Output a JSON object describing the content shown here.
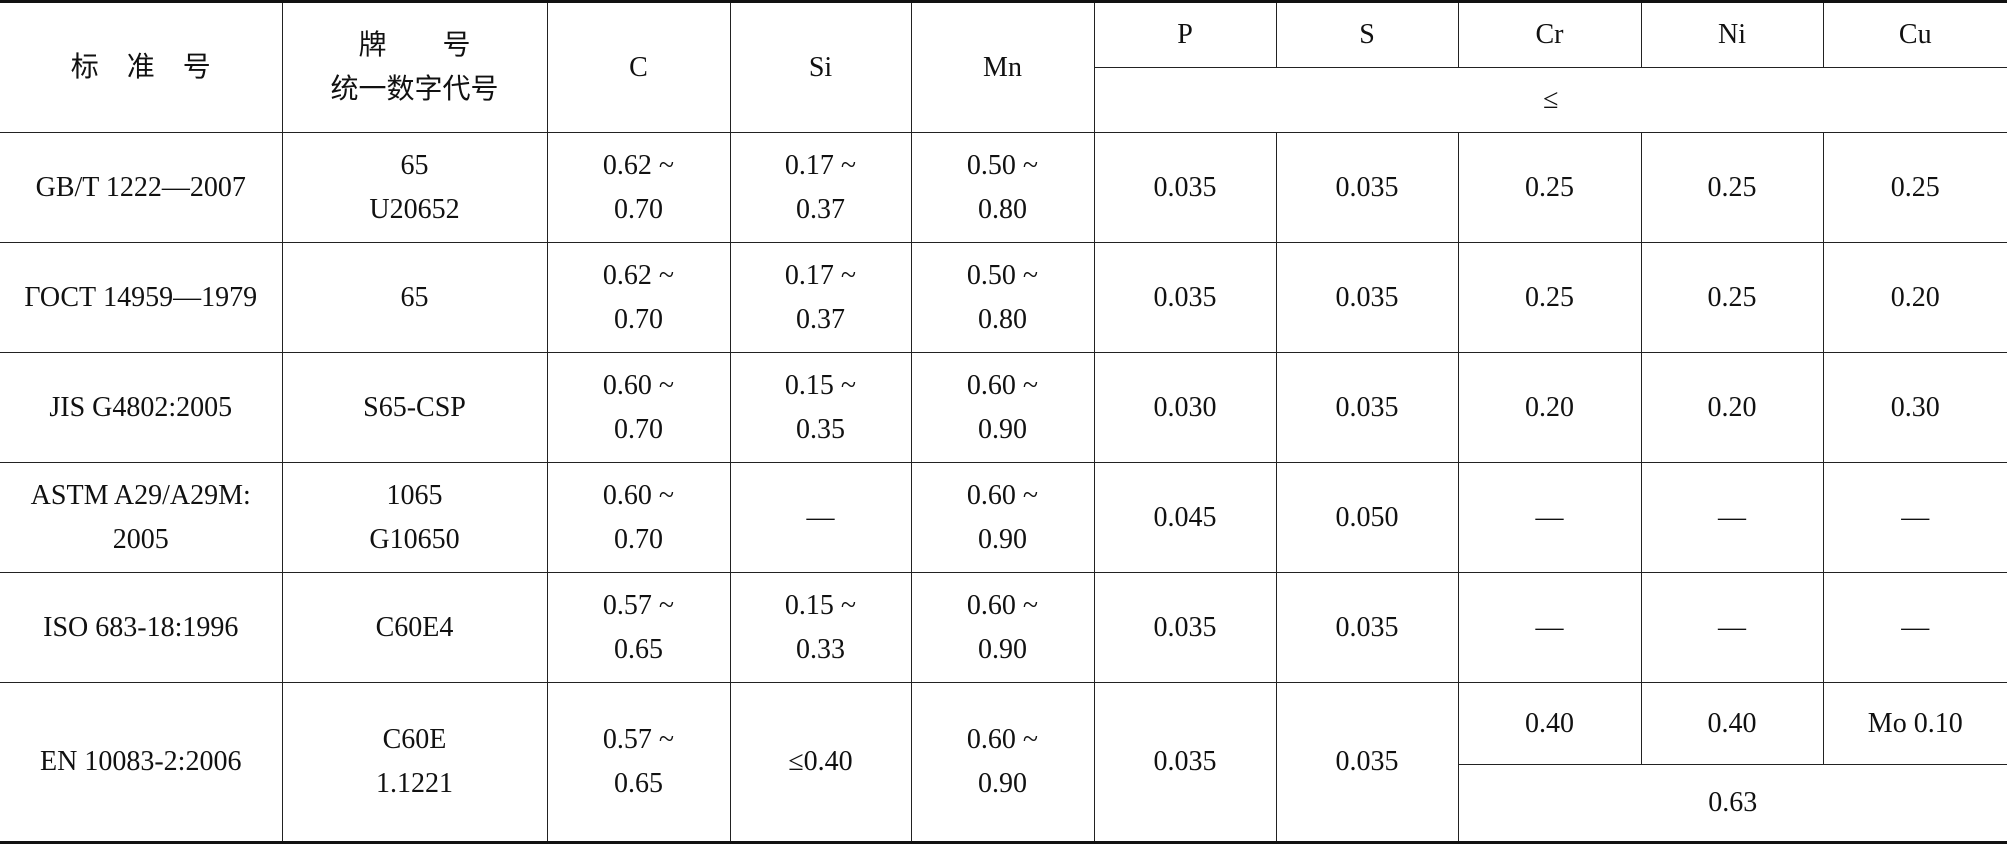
{
  "table": {
    "header": {
      "standard": "标　准　号",
      "grade": [
        "牌　　号",
        "统一数字代号"
      ],
      "columns": [
        "C",
        "Si",
        "Mn",
        "P",
        "S",
        "Cr",
        "Ni",
        "Cu"
      ],
      "limit": "≤"
    },
    "rows": [
      {
        "standard": [
          "GB/T 1222—2007"
        ],
        "grade": [
          "65",
          "U20652"
        ],
        "values": [
          [
            "0.62 ~",
            "0.70"
          ],
          [
            "0.17 ~",
            "0.37"
          ],
          [
            "0.50 ~",
            "0.80"
          ],
          [
            "0.035"
          ],
          [
            "0.035"
          ],
          [
            "0.25"
          ],
          [
            "0.25"
          ],
          [
            "0.25"
          ]
        ]
      },
      {
        "standard": [
          "ГОСТ 14959—1979"
        ],
        "grade": [
          "65"
        ],
        "values": [
          [
            "0.62 ~",
            "0.70"
          ],
          [
            "0.17 ~",
            "0.37"
          ],
          [
            "0.50 ~",
            "0.80"
          ],
          [
            "0.035"
          ],
          [
            "0.035"
          ],
          [
            "0.25"
          ],
          [
            "0.25"
          ],
          [
            "0.20"
          ]
        ]
      },
      {
        "standard": [
          "JIS G4802:2005"
        ],
        "grade": [
          "S65-CSP"
        ],
        "values": [
          [
            "0.60 ~",
            "0.70"
          ],
          [
            "0.15 ~",
            "0.35"
          ],
          [
            "0.60 ~",
            "0.90"
          ],
          [
            "0.030"
          ],
          [
            "0.035"
          ],
          [
            "0.20"
          ],
          [
            "0.20"
          ],
          [
            "0.30"
          ]
        ]
      },
      {
        "standard": [
          "ASTM A29/A29M:",
          "2005"
        ],
        "grade": [
          "1065",
          "G10650"
        ],
        "values": [
          [
            "0.60 ~",
            "0.70"
          ],
          [
            "—"
          ],
          [
            "0.60 ~",
            "0.90"
          ],
          [
            "0.045"
          ],
          [
            "0.050"
          ],
          [
            "—"
          ],
          [
            "—"
          ],
          [
            "—"
          ]
        ]
      },
      {
        "standard": [
          "ISO 683-18:1996"
        ],
        "grade": [
          "C60E4"
        ],
        "values": [
          [
            "0.57 ~",
            "0.65"
          ],
          [
            "0.15 ~",
            "0.33"
          ],
          [
            "0.60 ~",
            "0.90"
          ],
          [
            "0.035"
          ],
          [
            "0.035"
          ],
          [
            "—"
          ],
          [
            "—"
          ],
          [
            "—"
          ]
        ]
      },
      {
        "standard": [
          "EN 10083-2:2006"
        ],
        "grade": [
          "C60E",
          "1.1221"
        ],
        "values": [
          [
            "0.57 ~",
            "0.65"
          ],
          [
            "≤0.40"
          ],
          [
            "0.60 ~",
            "0.90"
          ],
          [
            "0.035"
          ],
          [
            "0.035"
          ],
          [
            "0.40"
          ],
          [
            "0.40"
          ],
          [
            "Mo 0.10"
          ]
        ],
        "combined": "0.63"
      }
    ]
  }
}
